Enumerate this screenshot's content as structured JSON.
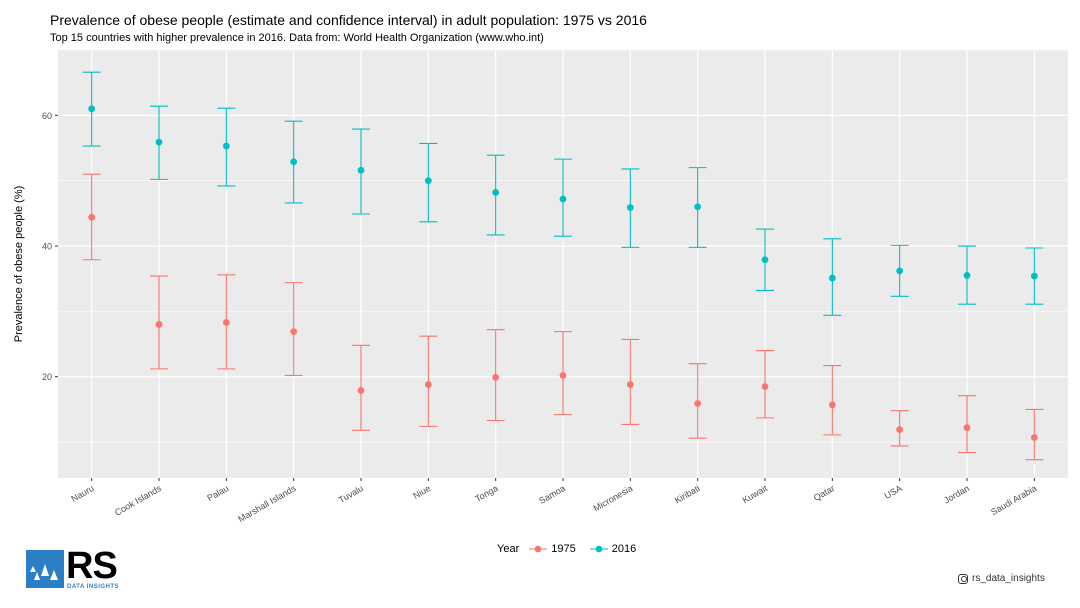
{
  "header": {
    "title": "Prevalence of obese people (estimate and confidence interval) in adult population: 1975 vs 2016",
    "subtitle": "Top 15 countries with higher prevalence in 2016. Data from: World Health Organization (www.who.int)"
  },
  "legend": {
    "title": "Year",
    "items": [
      "1975",
      "2016"
    ]
  },
  "logo": {
    "text": "RS",
    "subtext": "DATA INSIGHTS"
  },
  "footer": {
    "handle": "rs_data_insights",
    "icon": "instagram-icon"
  },
  "colors": {
    "1975": "#f8766d",
    "2016": "#00bfc4",
    "panel": "#ebebeb",
    "grid": "#ffffff"
  },
  "chart_data": {
    "type": "scatter",
    "title": "Prevalence of obese people (estimate and confidence interval) in adult population: 1975 vs 2016",
    "subtitle": "Top 15 countries with higher prevalence in 2016. Data from: World Health Organization (www.who.int)",
    "xlabel": "",
    "ylabel": "Prevalence of obese people (%)",
    "ylim": [
      4.5,
      70
    ],
    "yticks": [
      20,
      40,
      60
    ],
    "grid": true,
    "legend_position": "bottom",
    "categories": [
      "Nauru",
      "Cook Islands",
      "Palau",
      "Marshall Islands",
      "Tuvalu",
      "Niue",
      "Tonga",
      "Samoa",
      "Micronesia",
      "Kiribati",
      "Kuwait",
      "Qatar",
      "USA",
      "Jordan",
      "Saudi Arabia"
    ],
    "series": [
      {
        "name": "1975",
        "values": [
          44.4,
          28.0,
          28.3,
          26.9,
          17.9,
          18.8,
          19.9,
          20.2,
          18.8,
          15.9,
          18.5,
          15.7,
          11.9,
          12.2,
          10.7
        ],
        "lower": [
          37.9,
          21.2,
          21.2,
          20.2,
          11.8,
          12.4,
          13.3,
          14.2,
          12.7,
          10.6,
          13.7,
          11.1,
          9.4,
          8.4,
          7.3
        ],
        "upper": [
          51.0,
          35.4,
          35.6,
          34.4,
          24.8,
          26.2,
          27.2,
          26.9,
          25.7,
          22.0,
          24.0,
          21.7,
          14.8,
          17.1,
          15.0
        ]
      },
      {
        "name": "2016",
        "values": [
          61.0,
          55.9,
          55.3,
          52.9,
          51.6,
          50.0,
          48.2,
          47.2,
          45.9,
          46.0,
          37.9,
          35.1,
          36.2,
          35.5,
          35.4
        ],
        "lower": [
          55.3,
          50.2,
          49.2,
          46.6,
          44.9,
          43.7,
          41.7,
          41.5,
          39.8,
          39.8,
          33.2,
          29.4,
          32.3,
          31.1,
          31.1
        ],
        "upper": [
          66.6,
          61.4,
          61.1,
          59.1,
          57.9,
          55.7,
          53.9,
          53.3,
          51.8,
          52.0,
          42.6,
          41.1,
          40.1,
          40.0,
          39.7
        ]
      }
    ]
  }
}
